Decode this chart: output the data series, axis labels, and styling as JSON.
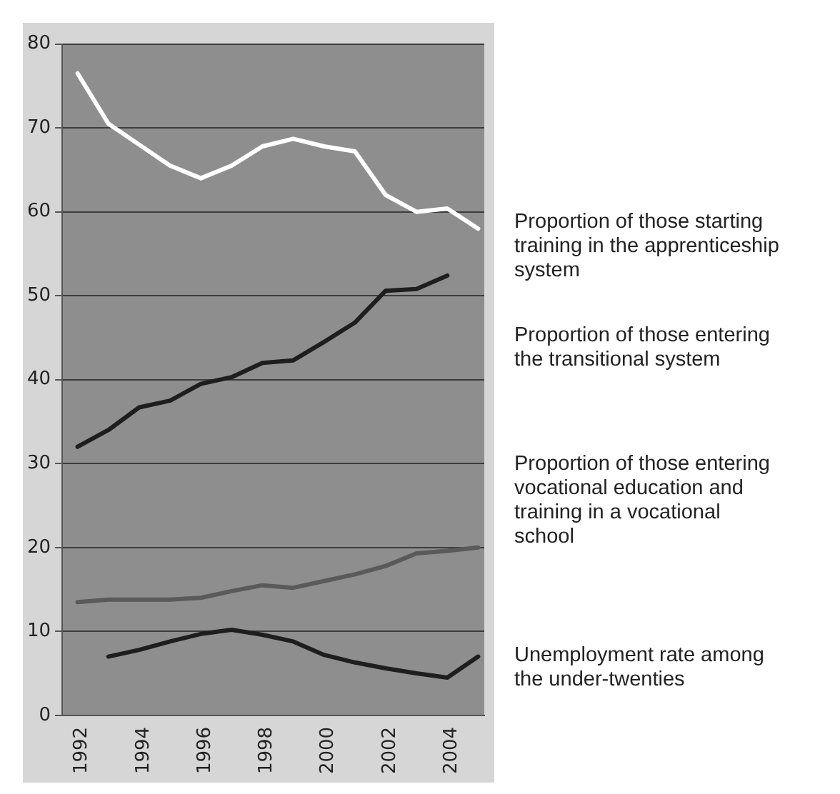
{
  "chart_data": {
    "type": "line",
    "x": [
      1992,
      1993,
      1994,
      1995,
      1996,
      1997,
      1998,
      1999,
      2000,
      2001,
      2002,
      2003,
      2004,
      2005
    ],
    "series": [
      {
        "name": "Proportion of those starting training in the apprenticeship system",
        "color": "#ffffff",
        "values": [
          76.5,
          70.5,
          68,
          65.5,
          64,
          65.5,
          67.8,
          68.7,
          67.8,
          67.2,
          62,
          60,
          60.4,
          58
        ]
      },
      {
        "name": "Proportion of those entering the transitional system",
        "color": "#1e1e1e",
        "values": [
          32,
          34,
          36.7,
          37.5,
          39.5,
          40.3,
          42,
          42.3,
          44.5,
          46.8,
          50.6,
          50.8,
          52.4,
          null
        ]
      },
      {
        "name": "Proportion of those entering vocational education and training in a vocational school",
        "color": "#5a5a5a",
        "values": [
          13.5,
          13.8,
          13.8,
          13.8,
          14,
          14.8,
          15.5,
          15.2,
          16,
          16.8,
          17.8,
          19.3,
          19.6,
          20
        ]
      },
      {
        "name": "Unemployment rate among the under-twenties",
        "color": "#1e1e1e",
        "values": [
          null,
          7,
          7.8,
          8.8,
          9.7,
          10.2,
          9.6,
          8.8,
          7.2,
          6.3,
          5.6,
          5,
          4.5,
          7
        ]
      }
    ],
    "xlim": [
      1991.5,
      2005.2
    ],
    "xticks": [
      1992,
      1994,
      1996,
      1998,
      2000,
      2002,
      2004
    ],
    "ylim": [
      0,
      80
    ],
    "yticks": [
      0,
      10,
      20,
      30,
      40,
      50,
      60,
      70,
      80
    ],
    "grid": "y",
    "legend": "right",
    "marker": "none",
    "line_style": "solid"
  }
}
